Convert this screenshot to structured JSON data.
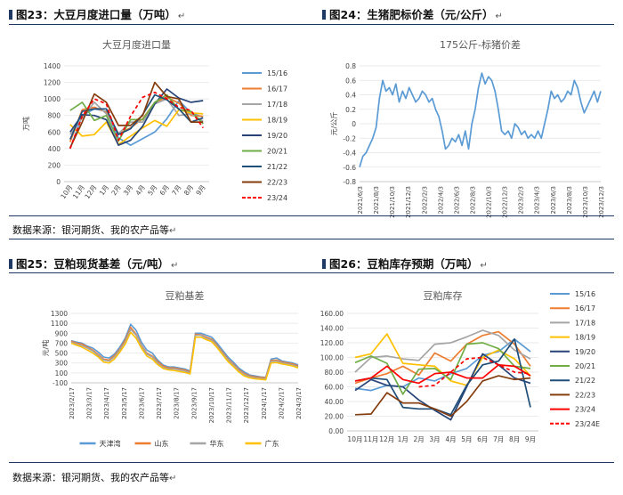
{
  "headers": {
    "fig23": "图23：大豆月度进口量（万吨）",
    "fig24": "图24：生猪肥标价差（元/公斤）",
    "fig25": "图25：豆粕现货基差（元/吨）",
    "fig26": "图26：豆粕库存预期（万吨）",
    "arrow": "↵"
  },
  "sources": {
    "top": "数据来源：银河期货、我的农产品等",
    "bottom": "数据来源：银河期货、我的农产品等"
  },
  "chart_data": [
    {
      "id": "c23",
      "type": "line",
      "title": "大豆月度进口量",
      "ylabel": "万吨",
      "categories": [
        "10月",
        "11月",
        "12月",
        "1月",
        "2月",
        "3月",
        "4月",
        "5月",
        "6月",
        "7月",
        "8月",
        "9月"
      ],
      "ylim": [
        0,
        1400
      ],
      "yticks": [
        0,
        200,
        400,
        600,
        800,
        1000,
        1200,
        1400
      ],
      "legend_position": "right",
      "series": [
        {
          "name": "15/16",
          "color": "#5b9bd5",
          "dash": false,
          "values": [
            400,
            800,
            880,
            850,
            530,
            440,
            520,
            600,
            760,
            980,
            830,
            780
          ]
        },
        {
          "name": "16/17",
          "color": "#ed7d31",
          "dash": false,
          "values": [
            480,
            870,
            900,
            840,
            580,
            650,
            760,
            960,
            1020,
            950,
            800,
            790
          ]
        },
        {
          "name": "17/18",
          "color": "#a5a5a5",
          "dash": false,
          "values": [
            570,
            770,
            960,
            820,
            580,
            720,
            720,
            940,
            1000,
            800,
            820,
            730
          ]
        },
        {
          "name": "18/19",
          "color": "#ffc000",
          "dash": false,
          "values": [
            690,
            550,
            570,
            720,
            450,
            550,
            650,
            740,
            670,
            870,
            830,
            820
          ]
        },
        {
          "name": "19/20",
          "color": "#264478",
          "dash": false,
          "values": [
            600,
            810,
            800,
            750,
            440,
            500,
            670,
            940,
            1120,
            1010,
            960,
            980
          ]
        },
        {
          "name": "20/21",
          "color": "#70ad47",
          "dash": false,
          "values": [
            860,
            960,
            740,
            800,
            490,
            750,
            750,
            960,
            1050,
            870,
            850,
            700
          ]
        },
        {
          "name": "21/22",
          "color": "#1f4e79",
          "dash": false,
          "values": [
            510,
            850,
            880,
            880,
            570,
            640,
            810,
            1050,
            990,
            880,
            720,
            770
          ]
        },
        {
          "name": "22/23",
          "color": "#843c0c",
          "dash": false,
          "values": [
            410,
            720,
            1060,
            960,
            680,
            680,
            800,
            1200,
            1030,
            1000,
            720,
            720
          ]
        },
        {
          "name": "23/24",
          "color": "#ff0000",
          "dash": true,
          "values": [
            400,
            790,
            1000,
            940,
            500,
            790,
            1020,
            1080,
            1000,
            900,
            860,
            650
          ]
        }
      ]
    },
    {
      "id": "c24",
      "type": "line",
      "title": "175公斤-标猪价差",
      "ylabel": "元/公斤",
      "ylim": [
        -0.8,
        0.8
      ],
      "yticks": [
        -0.8,
        -0.6,
        -0.4,
        -0.2,
        0,
        0.2,
        0.4,
        0.6,
        0.8
      ],
      "x_ticks": [
        "2021/6/3",
        "2021/8/3",
        "2021/10/3",
        "2021/12/3",
        "2022/2/3",
        "2022/4/3",
        "2022/6/3",
        "2022/8/3",
        "2022/10/3",
        "2022/12/3",
        "2023/2/3",
        "2023/4/3",
        "2023/6/3",
        "2023/8/3",
        "2023/10/3",
        "2023/12/3"
      ],
      "series": [
        {
          "name": "",
          "color": "#5b9bd5",
          "values": [
            -0.6,
            -0.45,
            -0.4,
            -0.3,
            -0.2,
            -0.05,
            0.35,
            0.6,
            0.45,
            0.5,
            0.4,
            0.55,
            0.3,
            0.45,
            0.35,
            0.5,
            0.4,
            0.3,
            0.35,
            0.45,
            0.4,
            0.3,
            0.35,
            0.2,
            0.1,
            -0.1,
            -0.35,
            -0.3,
            -0.2,
            -0.25,
            -0.15,
            -0.3,
            -0.1,
            -0.35,
            0.0,
            0.2,
            0.5,
            0.7,
            0.55,
            0.65,
            0.6,
            0.45,
            0.2,
            -0.1,
            -0.15,
            -0.1,
            -0.2,
            0.0,
            -0.05,
            -0.15,
            -0.1,
            -0.2,
            -0.15,
            -0.2,
            -0.1,
            -0.2,
            0.0,
            0.2,
            0.45,
            0.35,
            0.4,
            0.3,
            0.35,
            0.45,
            0.4,
            0.6,
            0.5,
            0.3,
            0.15,
            0.25,
            0.35,
            0.45,
            0.3,
            0.45
          ]
        }
      ]
    },
    {
      "id": "c25",
      "type": "line",
      "title": "豆粕基差",
      "ylabel": "元/吨",
      "ylim": [
        -100,
        1300
      ],
      "yticks": [
        -100,
        100,
        300,
        500,
        700,
        900,
        1100,
        1300
      ],
      "tick_labels": [
        "-100",
        "100",
        "300",
        "500",
        "700",
        "900",
        "1100",
        "1300"
      ],
      "x_ticks": [
        "2023/2/17",
        "2023/3/17",
        "2023/4/17",
        "2023/5/17",
        "2023/6/17",
        "2023/7/17",
        "2023/8/17",
        "2023/9/17",
        "2023/10/17",
        "2023/11/17",
        "2023/12/17",
        "2024/1/17",
        "2024/2/17",
        "2024/3/17"
      ],
      "legend_position": "bottom",
      "series": [
        {
          "name": "天津湾",
          "color": "#5b9bd5",
          "values": [
            750,
            720,
            700,
            640,
            600,
            520,
            420,
            400,
            480,
            620,
            800,
            1080,
            960,
            720,
            560,
            500,
            360,
            260,
            220,
            220,
            200,
            180,
            140,
            900,
            900,
            860,
            820,
            700,
            560,
            420,
            320,
            200,
            120,
            60,
            40,
            20,
            10,
            380,
            400,
            340,
            320,
            300,
            260
          ]
        },
        {
          "name": "山东",
          "color": "#ed7d31",
          "values": [
            740,
            700,
            680,
            620,
            560,
            470,
            380,
            360,
            450,
            580,
            760,
            1020,
            880,
            660,
            500,
            440,
            330,
            240,
            200,
            200,
            180,
            160,
            120,
            880,
            870,
            820,
            780,
            660,
            520,
            380,
            280,
            170,
            90,
            40,
            20,
            10,
            0,
            350,
            360,
            320,
            300,
            280,
            240
          ]
        },
        {
          "name": "华东",
          "color": "#a5a5a5",
          "values": [
            720,
            680,
            650,
            600,
            540,
            450,
            360,
            340,
            420,
            560,
            720,
            980,
            860,
            640,
            480,
            420,
            300,
            210,
            180,
            180,
            160,
            140,
            100,
            860,
            860,
            800,
            760,
            640,
            500,
            360,
            260,
            150,
            70,
            20,
            0,
            -10,
            -20,
            330,
            340,
            300,
            280,
            260,
            220
          ]
        },
        {
          "name": "广东",
          "color": "#ffc000",
          "values": [
            700,
            660,
            620,
            560,
            500,
            420,
            320,
            300,
            380,
            520,
            680,
            920,
            800,
            600,
            440,
            380,
            270,
            190,
            160,
            150,
            130,
            110,
            80,
            820,
            820,
            770,
            730,
            610,
            470,
            330,
            230,
            120,
            40,
            0,
            -20,
            -30,
            -40,
            300,
            310,
            280,
            260,
            240,
            200
          ]
        }
      ]
    },
    {
      "id": "c26",
      "type": "line",
      "title": "豆粕库存",
      "categories": [
        "10月",
        "11月",
        "12月",
        "1月",
        "2月",
        "3月",
        "4月",
        "5月",
        "6月",
        "7月",
        "8月",
        "9月"
      ],
      "ylim": [
        0,
        160
      ],
      "yticks": [
        0,
        20,
        40,
        60,
        80,
        100,
        120,
        140,
        160
      ],
      "tick_labels": [
        "0.00",
        "20.00",
        "40.00",
        "60.00",
        "80.00",
        "100.00",
        "120.00",
        "140.00",
        "160.00"
      ],
      "legend_position": "right",
      "series": [
        {
          "name": "15/16",
          "color": "#5b9bd5",
          "dash": false,
          "values": [
            58,
            55,
            62,
            60,
            72,
            68,
            78,
            85,
            103,
            108,
            125,
            108
          ]
        },
        {
          "name": "16/17",
          "color": "#ed7d31",
          "dash": false,
          "values": [
            65,
            72,
            78,
            88,
            76,
            106,
            95,
            118,
            130,
            135,
            118,
            88
          ]
        },
        {
          "name": "17/18",
          "color": "#a5a5a5",
          "dash": false,
          "values": [
            80,
            100,
            102,
            98,
            96,
            118,
            120,
            128,
            137,
            130,
            110,
            98
          ]
        },
        {
          "name": "18/19",
          "color": "#ffc000",
          "dash": false,
          "values": [
            100,
            105,
            132,
            92,
            90,
            88,
            68,
            62,
            100,
            110,
            98,
            75
          ]
        },
        {
          "name": "19/20",
          "color": "#264478",
          "dash": false,
          "values": [
            55,
            70,
            62,
            60,
            42,
            28,
            15,
            60,
            105,
            90,
            72,
            65
          ]
        },
        {
          "name": "20/21",
          "color": "#70ad47",
          "dash": false,
          "values": [
            93,
            102,
            92,
            50,
            84,
            85,
            70,
            118,
            120,
            112,
            88,
            85
          ]
        },
        {
          "name": "21/22",
          "color": "#1f4e79",
          "dash": false,
          "values": [
            68,
            72,
            70,
            32,
            30,
            30,
            22,
            62,
            90,
            95,
            125,
            32
          ]
        },
        {
          "name": "22/23",
          "color": "#843c0c",
          "dash": false,
          "values": [
            22,
            23,
            52,
            38,
            38,
            30,
            20,
            40,
            68,
            75,
            70,
            72
          ]
        },
        {
          "name": "23/24",
          "color": "#ff0000",
          "dash": false,
          "values": [
            68,
            72,
            88,
            70,
            65,
            78,
            80,
            72,
            72,
            90,
            88,
            75
          ]
        },
        {
          "name": "23/24E",
          "color": "#ff0000",
          "dash": true,
          "values": [
            null,
            null,
            null,
            null,
            60,
            62,
            80,
            98,
            100,
            90,
            80,
            78
          ]
        }
      ]
    }
  ]
}
